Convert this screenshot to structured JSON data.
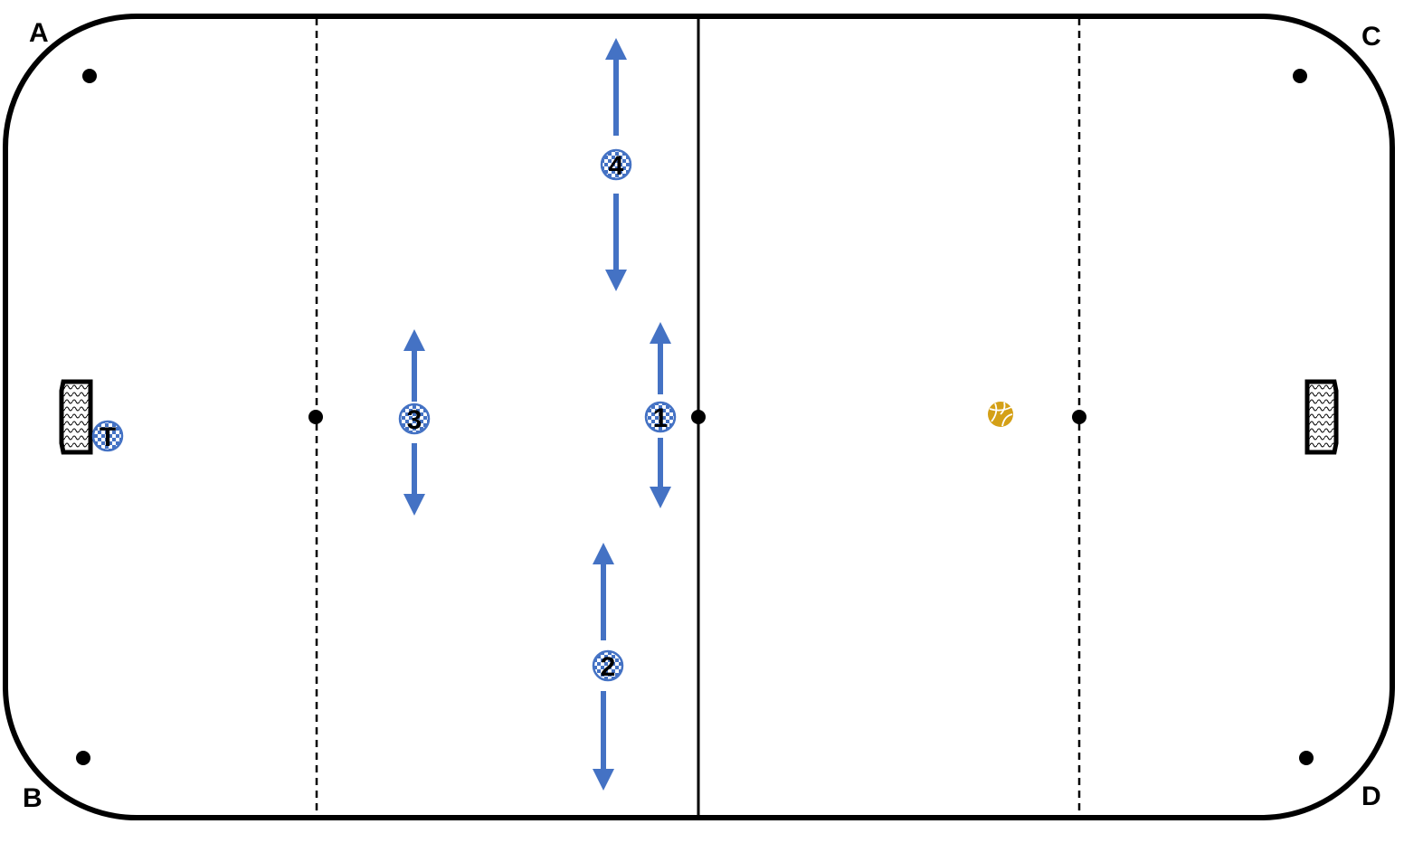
{
  "corners": {
    "top_left": "A",
    "bottom_left": "B",
    "top_right": "C",
    "bottom_right": "D"
  },
  "players": [
    {
      "id": "p1",
      "label": "1",
      "movement": "vertical"
    },
    {
      "id": "p2",
      "label": "2",
      "movement": "vertical"
    },
    {
      "id": "p3",
      "label": "3",
      "movement": "vertical"
    },
    {
      "id": "p4",
      "label": "4",
      "movement": "vertical"
    },
    {
      "id": "pt",
      "label": "T",
      "movement": "none"
    }
  ],
  "colors": {
    "court_line": "#000000",
    "arrow": "#4472c4",
    "player_check_a": "#4472c4",
    "player_check_b": "#ffffff",
    "ball": "#d4a017"
  },
  "icons": {
    "ball": "ball-icon",
    "goal": "goal-icon",
    "marker": "marker-dot-icon"
  }
}
